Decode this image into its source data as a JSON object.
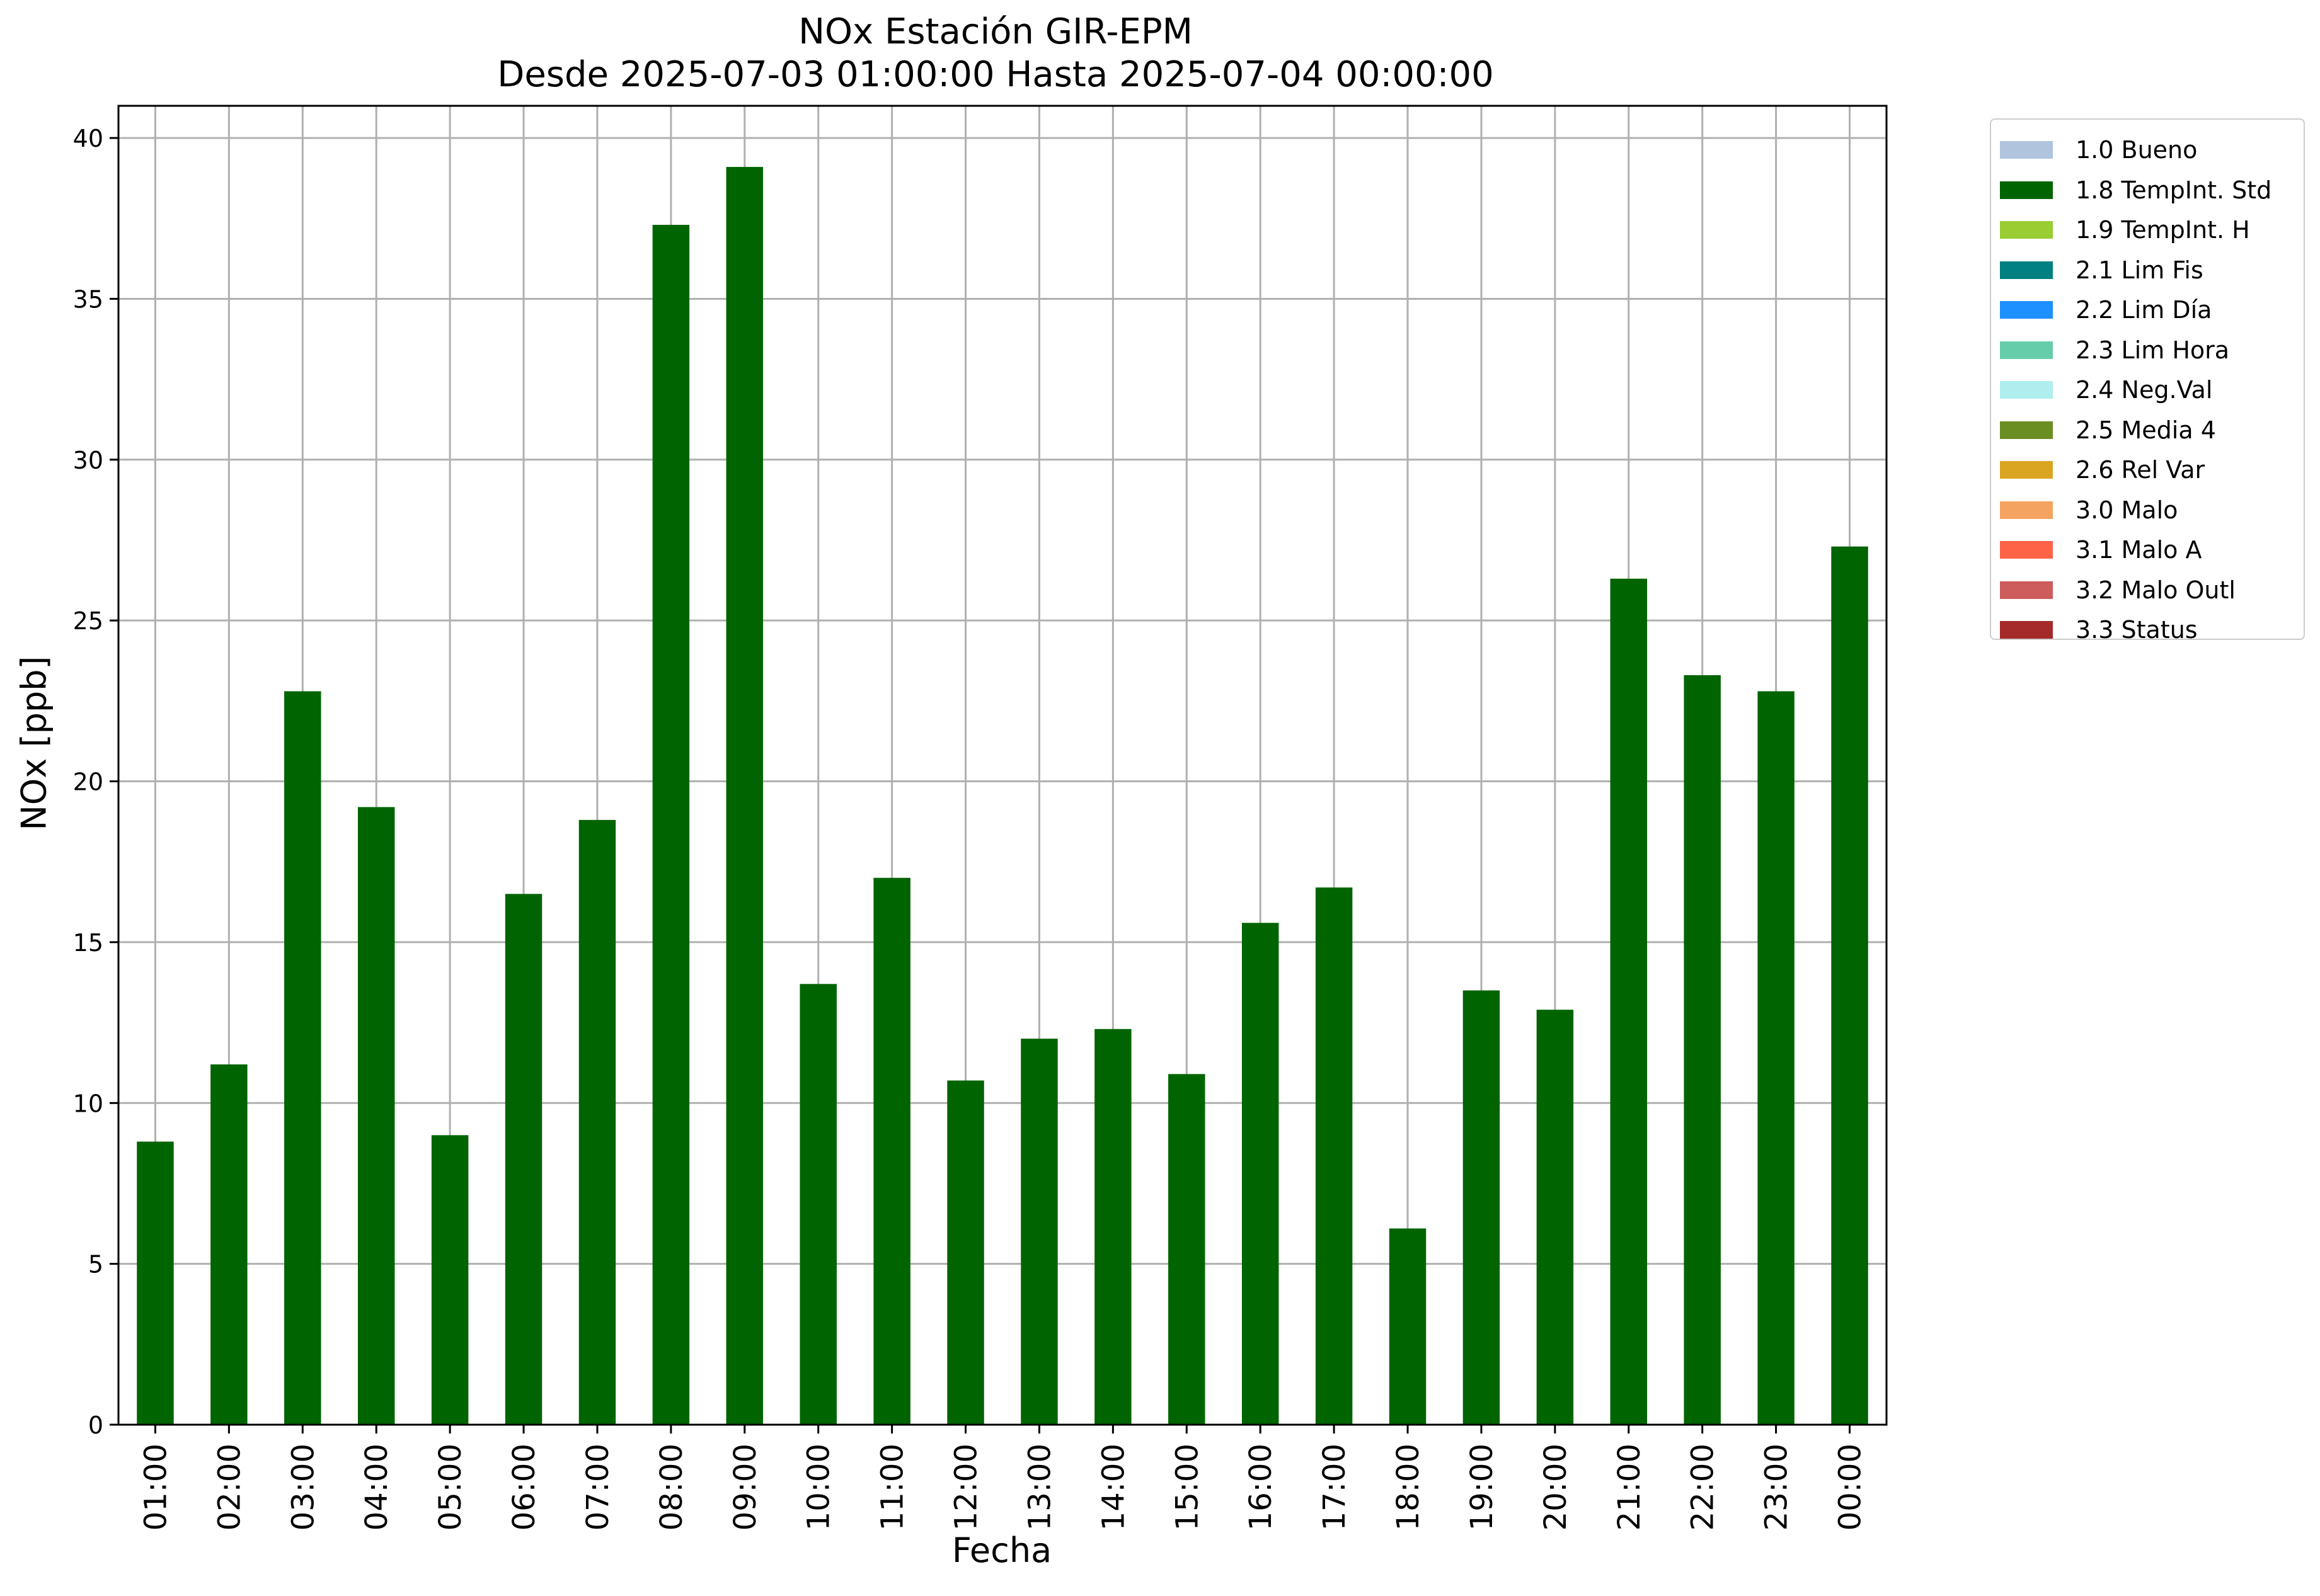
{
  "chart_data": {
    "type": "bar",
    "title": "NOx Estación GIR-EPM",
    "subtitle": "Desde 2025-07-03 01:00:00 Hasta 2025-07-04 00:00:00",
    "xlabel": "Fecha",
    "ylabel": "NOx [ppb]",
    "ylim": [
      0,
      41
    ],
    "yticks": [
      0,
      5,
      10,
      15,
      20,
      25,
      30,
      35,
      40
    ],
    "grid": true,
    "legend_position": "outside-right",
    "categories": [
      "01:00",
      "02:00",
      "03:00",
      "04:00",
      "05:00",
      "06:00",
      "07:00",
      "08:00",
      "09:00",
      "10:00",
      "11:00",
      "12:00",
      "13:00",
      "14:00",
      "15:00",
      "16:00",
      "17:00",
      "18:00",
      "19:00",
      "20:00",
      "21:00",
      "22:00",
      "23:00",
      "00:00"
    ],
    "series": [
      {
        "name": "1.8 TempInt. Std",
        "color": "#006400",
        "values": [
          8.8,
          11.2,
          22.8,
          19.2,
          9.0,
          16.5,
          18.8,
          37.3,
          39.1,
          13.7,
          17.0,
          10.7,
          12.0,
          12.3,
          10.9,
          15.6,
          16.7,
          6.1,
          13.5,
          12.9,
          26.3,
          23.3,
          22.8,
          27.3
        ]
      }
    ],
    "legend": [
      {
        "label": "1.0 Bueno",
        "color": "#b0c4de"
      },
      {
        "label": "1.8 TempInt. Std",
        "color": "#006400"
      },
      {
        "label": "1.9 TempInt. H",
        "color": "#9acd32"
      },
      {
        "label": "2.1 Lim Fis",
        "color": "#008080"
      },
      {
        "label": "2.2 Lim Día",
        "color": "#1e90ff"
      },
      {
        "label": "2.3 Lim Hora",
        "color": "#66cdaa"
      },
      {
        "label": "2.4 Neg.Val",
        "color": "#afeeee"
      },
      {
        "label": "2.5 Media 4",
        "color": "#6b8e23"
      },
      {
        "label": "2.6 Rel Var",
        "color": "#daa520"
      },
      {
        "label": "3.0 Malo",
        "color": "#f4a460"
      },
      {
        "label": "3.1 Malo A",
        "color": "#ff6347"
      },
      {
        "label": "3.2 Malo Outl",
        "color": "#cd5c5c"
      },
      {
        "label": "3.3 Status",
        "color": "#a52a2a"
      }
    ]
  }
}
